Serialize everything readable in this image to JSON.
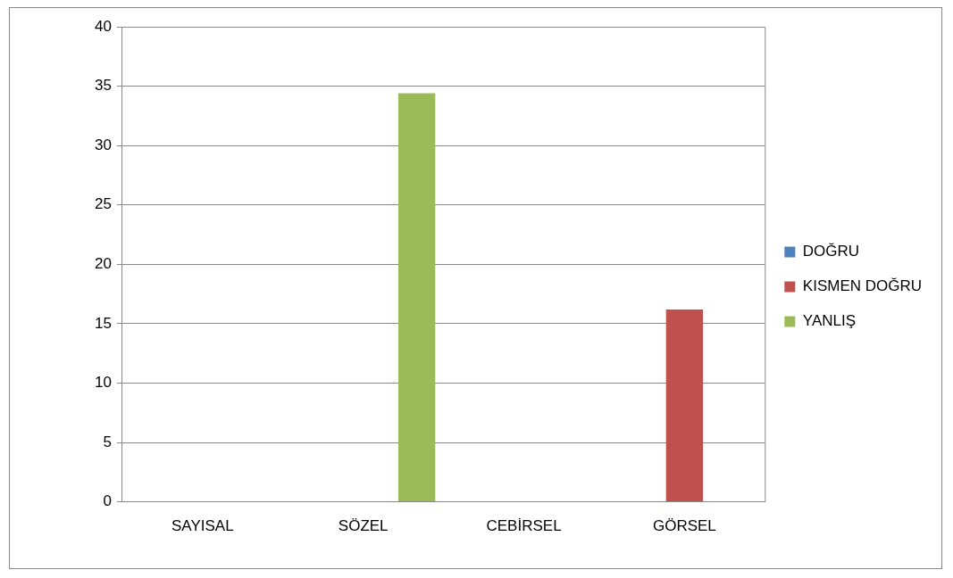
{
  "chart_data": {
    "type": "bar",
    "categories": [
      "SAYISAL",
      "SÖZEL",
      "CEBİRSEL",
      "GÖRSEL"
    ],
    "series": [
      {
        "name": "DOĞRU",
        "color": "#4f81bd",
        "values": [
          0,
          0,
          0,
          0
        ]
      },
      {
        "name": "KISMEN DOĞRU",
        "color": "#c0504d",
        "values": [
          0,
          0,
          0,
          16.2
        ]
      },
      {
        "name": "YANLIŞ",
        "color": "#9bbb59",
        "values": [
          0,
          34.4,
          0,
          0
        ]
      }
    ],
    "ylim": [
      0,
      40
    ],
    "yticks": [
      0,
      5,
      10,
      15,
      20,
      25,
      30,
      35,
      40
    ],
    "grid": "y",
    "legend": "right"
  }
}
